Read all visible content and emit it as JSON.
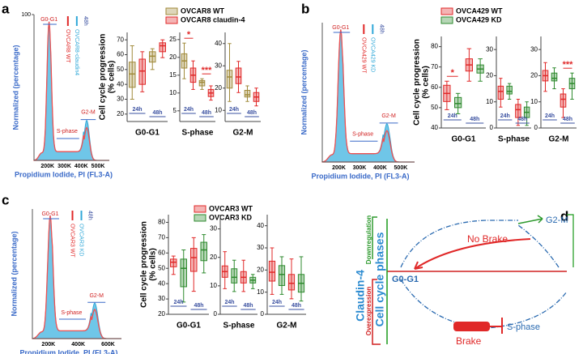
{
  "panels": [
    {
      "label": "a",
      "histogram": {
        "ylabel": "Normalized (percentage)",
        "xlabel": "Propidium Iodide, PI (FL3-A)",
        "xticks": [
          "200K",
          "300K",
          "400K",
          "500K"
        ],
        "ylim": [
          0,
          100
        ],
        "yticks": [
          100
        ],
        "peaks": {
          "g1": "G0-G1",
          "s": "S-phase",
          "g2": "G2-M"
        },
        "legend": [
          "OVCAR8 WT",
          "OVCAR8-claudin4",
          "48h"
        ]
      },
      "boxplot": {
        "ylabel": [
          "Cell cycle progression",
          "(% cells)"
        ],
        "series": [
          {
            "name": "OVCAR8 WT",
            "color": "#a08a3a"
          },
          {
            "name": "OVCAR8 claudin-4",
            "color": "#e02828"
          }
        ],
        "groups": [
          {
            "name": "G0-G1",
            "ylim": [
              15,
              75
            ],
            "yticks": [
              20,
              30,
              40,
              50,
              60,
              70
            ],
            "boxes": [
              [
                30,
                38,
                47,
                55,
                66
              ],
              [
                35,
                40,
                49,
                57,
                62
              ],
              [
                50,
                55,
                59,
                62,
                64
              ],
              [
                58,
                62,
                66,
                68,
                70
              ]
            ],
            "hours": [
              "24h",
              "48h"
            ]
          },
          {
            "name": "S-phase",
            "ylim": [
              2,
              27
            ],
            "yticks": [
              5,
              10,
              15,
              20,
              25
            ],
            "boxes": [
              [
                14,
                17,
                19,
                21,
                24
              ],
              [
                11,
                13,
                15,
                17,
                19
              ],
              [
                11,
                12,
                13,
                13.5,
                14
              ],
              [
                8,
                9,
                10,
                11,
                12
              ]
            ],
            "hours": [
              "24h",
              "48h"
            ],
            "stars_24h": "*",
            "stars_48h": "***"
          },
          {
            "name": "G2-M",
            "ylim": [
              5,
              45
            ],
            "yticks": [
              10,
              20,
              30,
              40
            ],
            "boxes": [
              [
                14,
                20,
                25,
                28,
                40
              ],
              [
                18,
                22,
                25,
                29,
                32
              ],
              [
                14,
                16,
                17,
                19,
                21
              ],
              [
                12,
                14,
                16,
                18,
                20
              ]
            ],
            "hours": [
              "24h",
              "48h"
            ]
          }
        ]
      }
    },
    {
      "label": "b",
      "histogram": {
        "ylabel": "Normalized (percentage)",
        "xlabel": "Propidium Iodide, PI (FL3-A)",
        "xticks": [
          "200K",
          "300K",
          "400K",
          "500K"
        ],
        "peaks": {
          "g1": "G0-G1",
          "s": "S-phase",
          "g2": "G2-M"
        },
        "legend": [
          "OVCA429 WT",
          "OVCA429 KD",
          "48h"
        ]
      },
      "boxplot": {
        "ylabel": [
          "Cell cycle progression",
          "(% cells)"
        ],
        "series": [
          {
            "name": "OVCA429 WT",
            "color": "#e02828"
          },
          {
            "name": "OVCA429 KD",
            "color": "#2e8a2e"
          }
        ],
        "groups": [
          {
            "name": "G0-G1",
            "ylim": [
              40,
              85
            ],
            "yticks": [
              40,
              50,
              60,
              70,
              80
            ],
            "boxes": [
              [
                49,
                53,
                57,
                61,
                63
              ],
              [
                47,
                50,
                52,
                55,
                57
              ],
              [
                63,
                68,
                71,
                74,
                79
              ],
              [
                63,
                67,
                69,
                71,
                74
              ]
            ],
            "hours": [
              "24h",
              "48h"
            ],
            "stars_24h": "*"
          },
          {
            "name": "S-phase",
            "ylim": [
              0,
              35
            ],
            "yticks": [
              0,
              10,
              20,
              30
            ],
            "boxes": [
              [
                8,
                11,
                14,
                16,
                19
              ],
              [
                11,
                13,
                14,
                16,
                17
              ],
              [
                1,
                4,
                7,
                9,
                11
              ],
              [
                1,
                4,
                6,
                8,
                10
              ]
            ],
            "hours": [
              "24h",
              "48h"
            ]
          },
          {
            "name": "G2-M",
            "ylim": [
              0,
              35
            ],
            "yticks": [
              0,
              10,
              20,
              30
            ],
            "boxes": [
              [
                14,
                18,
                20,
                22,
                25
              ],
              [
                15,
                18,
                19,
                21,
                23
              ],
              [
                4,
                8,
                11,
                13,
                15
              ],
              [
                11,
                15,
                17,
                19,
                21
              ]
            ],
            "hours": [
              "24h",
              "48h"
            ],
            "stars_48h": "***"
          }
        ]
      }
    },
    {
      "label": "c",
      "histogram": {
        "ylabel": "Normalized (percentage)",
        "xlabel": "Propidium Iodide, PI (FL3-A)",
        "xticks": [
          "200K",
          "400K",
          "600K"
        ],
        "peaks": {
          "g1": "G0-G1",
          "s": "S-phase",
          "g2": "G2-M"
        },
        "legend": [
          "OVCAR3 WT",
          "OVCAR3 KD",
          "48h"
        ]
      },
      "boxplot": {
        "ylabel": [
          "Cell cycle progression",
          "(% cells)"
        ],
        "series": [
          {
            "name": "OVCAR3 WT",
            "color": "#e02828"
          },
          {
            "name": "OVCAR3 KD",
            "color": "#2e8a2e"
          }
        ],
        "groups": [
          {
            "name": "G0-G1",
            "ylim": [
              20,
              85
            ],
            "yticks": [
              20,
              30,
              40,
              50,
              60,
              70,
              80
            ],
            "boxes": [
              [
                46,
                51,
                54,
                56,
                58
              ],
              [
                28,
                38,
                50,
                56,
                62
              ],
              [
                35,
                48,
                57,
                63,
                70
              ],
              [
                47,
                55,
                62,
                67,
                72
              ]
            ],
            "hours": [
              "24h",
              "48h"
            ]
          },
          {
            "name": "S-phase",
            "ylim": [
              0,
              35
            ],
            "yticks": [
              0,
              10,
              20,
              30
            ],
            "boxes": [
              [
                9,
                13,
                15,
                17,
                22
              ],
              [
                8,
                11,
                13,
                16,
                19
              ],
              [
                8,
                11,
                13,
                15,
                19
              ],
              [
                9,
                11,
                12,
                13,
                14
              ]
            ],
            "hours": [
              "24h",
              "48h"
            ]
          },
          {
            "name": "G2-M",
            "ylim": [
              0,
              45
            ],
            "yticks": [
              0,
              10,
              20,
              30,
              40
            ],
            "boxes": [
              [
                9,
                15,
                19,
                24,
                30
              ],
              [
                9,
                13,
                18,
                22,
                26
              ],
              [
                7,
                11,
                14,
                18,
                25
              ],
              [
                6,
                10,
                14,
                18,
                26
              ]
            ],
            "hours": [
              "24h",
              "48h"
            ]
          }
        ]
      }
    }
  ],
  "diagram": {
    "label": "d",
    "protein": "Claudin-4",
    "axis": "Cell cycle phases",
    "up": "Downregulation",
    "down": "Overexpression",
    "g2": "G2-M",
    "nobrake": "No Brake",
    "g1": "G0-G1",
    "brake": "Brake",
    "s": "S-phase"
  }
}
